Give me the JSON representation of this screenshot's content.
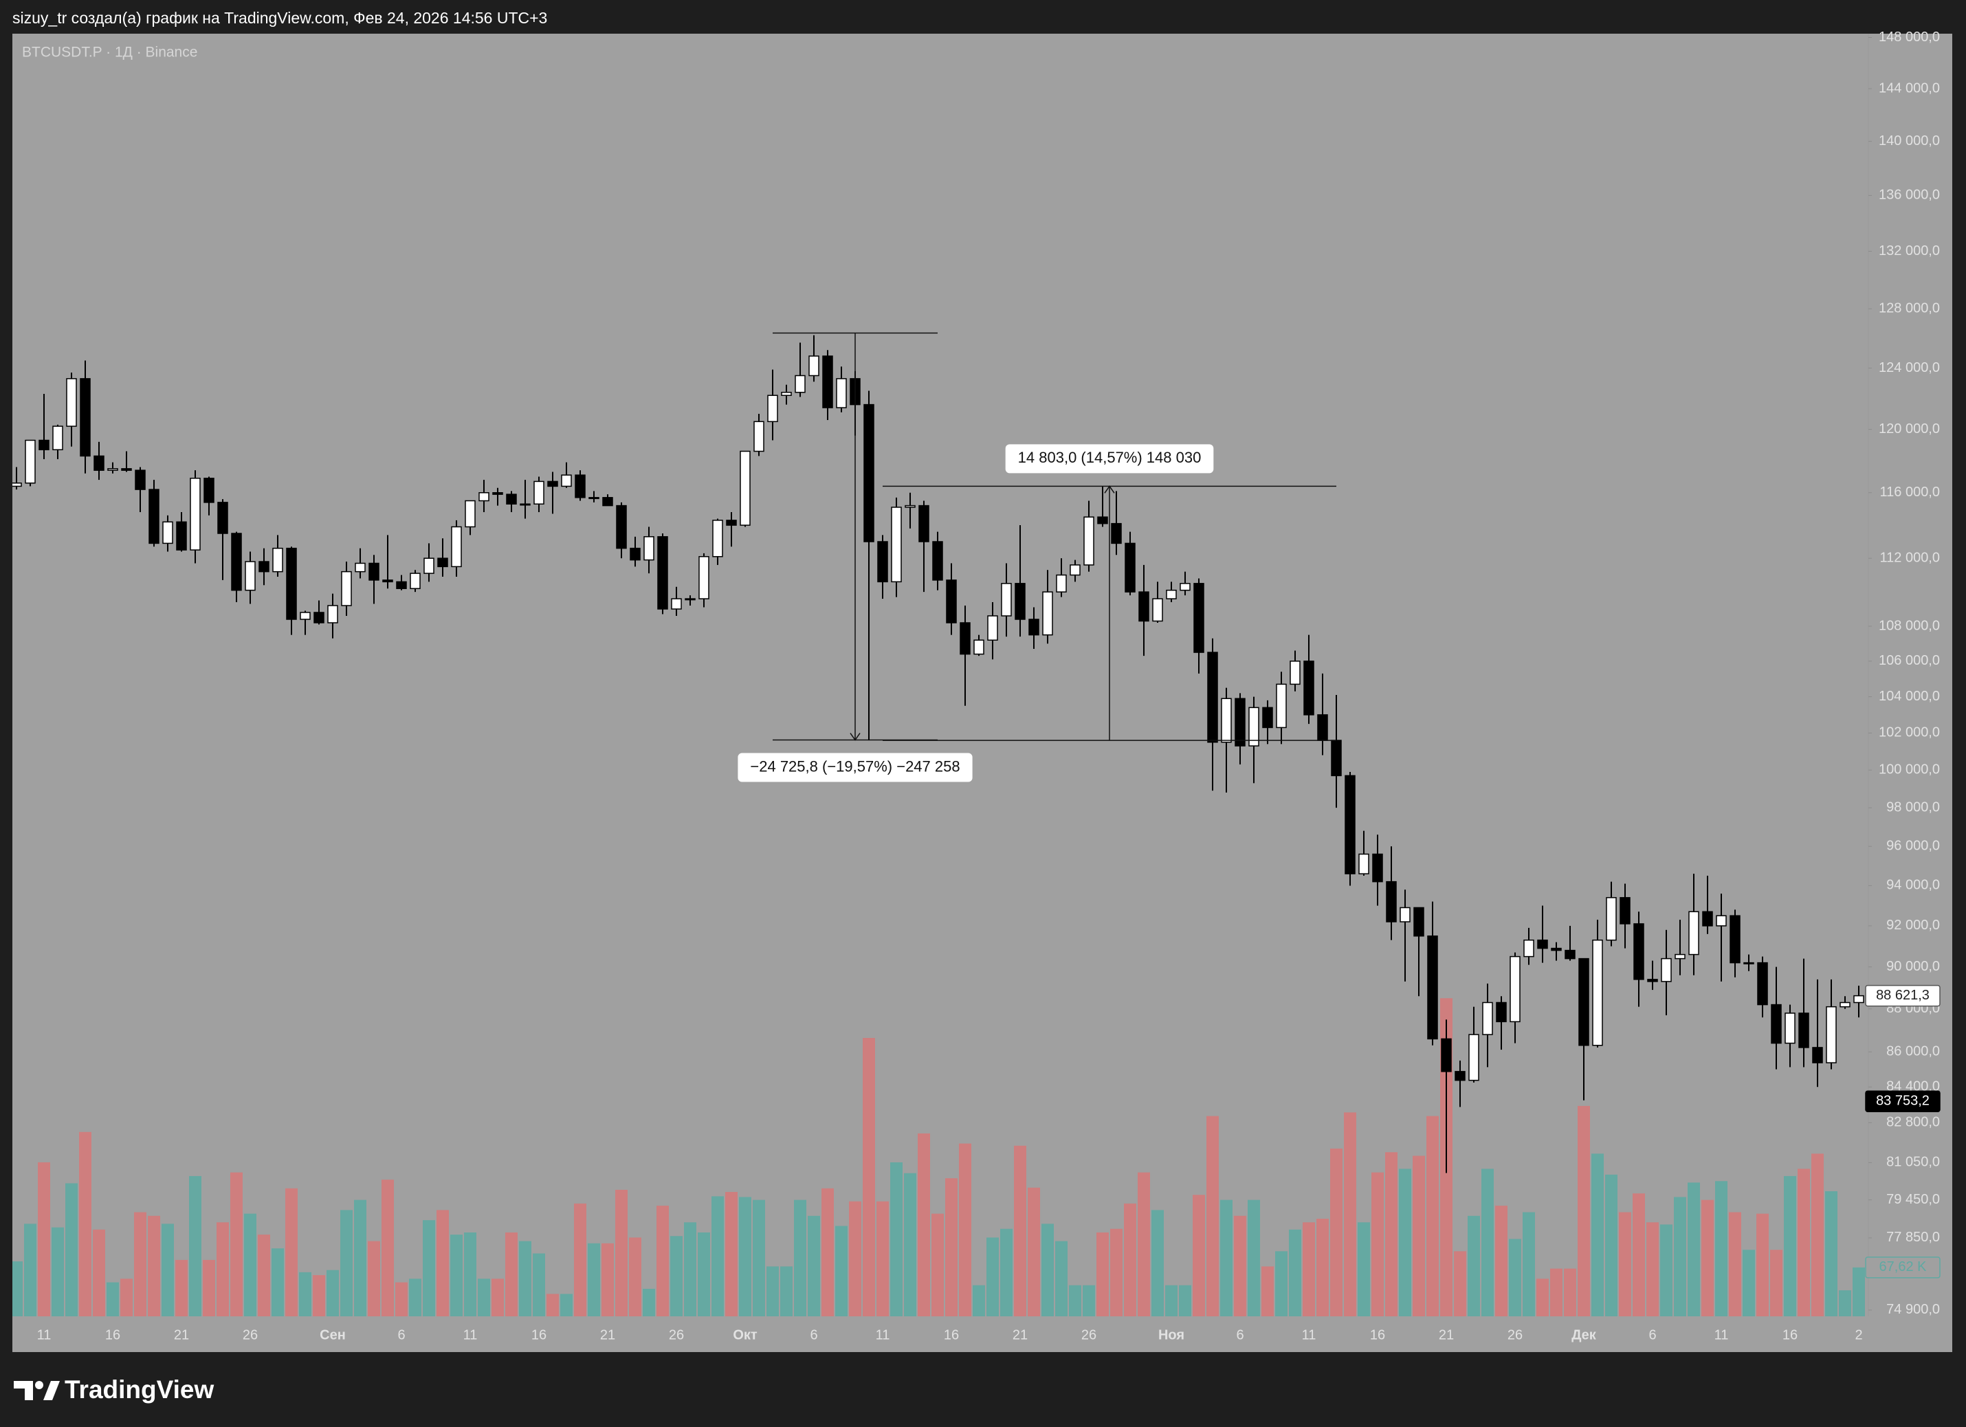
{
  "header": {
    "title": "sizuy_tr создал(а) график на TradingView.com, Фев 24, 2026 14:56 UTC+3"
  },
  "footer": {
    "brand": "TradingView"
  },
  "chart_data": {
    "type": "candlestick",
    "symbol": "BTCUSDT.P · 1Д · Binance",
    "categories": [
      null,
      null,
      "11",
      null,
      null,
      null,
      null,
      "16",
      null,
      null,
      null,
      null,
      "21",
      null,
      null,
      null,
      null,
      "26",
      null,
      null,
      null,
      null,
      null,
      "Сен",
      null,
      null,
      null,
      null,
      "6",
      null,
      null,
      null,
      null,
      "11",
      null,
      null,
      null,
      null,
      "16",
      null,
      null,
      null,
      null,
      "21",
      null,
      null,
      null,
      null,
      "26",
      null,
      null,
      null,
      null,
      "Окт",
      null,
      null,
      null,
      null,
      "6",
      null,
      null,
      null,
      null,
      "11",
      null,
      null,
      null,
      null,
      "16",
      null,
      null,
      null,
      null,
      "21",
      null,
      null,
      null,
      null,
      "26",
      null,
      null,
      null,
      null,
      null,
      "Ноя",
      null,
      null,
      null,
      null,
      "6",
      null,
      null,
      null,
      null,
      "11",
      null,
      null,
      null,
      null,
      "16",
      null,
      null,
      null,
      null,
      "21",
      null,
      null,
      null,
      null,
      "26",
      null,
      null,
      null,
      null,
      "Дек",
      null,
      null,
      null,
      null,
      "6",
      null,
      null,
      null,
      null,
      "11",
      null,
      null,
      null,
      null,
      "16",
      null,
      null,
      null,
      null,
      "2"
    ],
    "open": [
      116400,
      116600,
      119300,
      118700,
      120200,
      123300,
      118300,
      117400,
      117500,
      117400,
      116200,
      112900,
      114200,
      112500,
      116900,
      115400,
      113500,
      110100,
      111800,
      111200,
      112600,
      108400,
      108800,
      108200,
      109200,
      111200,
      111700,
      110700,
      110600,
      110200,
      111100,
      112000,
      111500,
      113900,
      115500,
      116000,
      115900,
      115300,
      115300,
      116700,
      116400,
      117100,
      115700,
      115700,
      115200,
      112600,
      111900,
      113300,
      109000,
      109600,
      109600,
      112100,
      114300,
      114000,
      118600,
      120500,
      122200,
      122400,
      123500,
      124800,
      121400,
      123300,
      121600,
      113000,
      110600,
      115100,
      115200,
      113000,
      110700,
      108200,
      106400,
      107200,
      108600,
      110500,
      108400,
      107500,
      110000,
      111000,
      111600,
      114500,
      114100,
      112900,
      110000,
      108300,
      109600,
      110100,
      110500,
      106500,
      101500,
      103900,
      101300,
      103400,
      102300,
      104700,
      106000,
      103000,
      101600,
      99700,
      94600,
      95600,
      94200,
      92200,
      92900,
      91500,
      86600,
      85100,
      84700,
      86800,
      88300,
      87400,
      90500,
      91300,
      90900,
      90800,
      90400,
      86300,
      91300,
      93400,
      92100,
      89400,
      89300,
      90400,
      90600,
      92700,
      92000,
      92500,
      90200,
      90200,
      88200,
      86400,
      87800,
      86200,
      85500,
      88100,
      88300
    ],
    "high": [
      117600,
      119300,
      122300,
      120300,
      123700,
      124500,
      119200,
      117900,
      118600,
      117600,
      116800,
      114600,
      114800,
      117400,
      117000,
      115600,
      113600,
      112400,
      112600,
      113400,
      112700,
      108900,
      109500,
      109900,
      111800,
      112600,
      112200,
      113400,
      111000,
      111300,
      112900,
      113200,
      114300,
      115500,
      116800,
      116300,
      116100,
      116800,
      117000,
      117300,
      117900,
      117400,
      116100,
      115900,
      115400,
      113300,
      113900,
      113500,
      110300,
      109800,
      112300,
      114400,
      114800,
      118600,
      121000,
      123900,
      122900,
      125700,
      126200,
      125200,
      124100,
      123800,
      122500,
      113400,
      115700,
      116000,
      115500,
      113600,
      111700,
      109200,
      107500,
      109400,
      111700,
      114000,
      109100,
      111300,
      112000,
      111900,
      115500,
      116400,
      116100,
      113600,
      111600,
      110600,
      110600,
      111200,
      110800,
      107300,
      104500,
      104200,
      104000,
      103800,
      105400,
      106600,
      107500,
      105300,
      104100,
      99900,
      96800,
      96600,
      96000,
      93800,
      92900,
      93200,
      87500,
      85600,
      88100,
      89200,
      88600,
      90700,
      91900,
      93000,
      91200,
      92000,
      90400,
      92300,
      94200,
      94100,
      92700,
      90300,
      91800,
      92300,
      94600,
      94500,
      93600,
      92800,
      90600,
      90500,
      90000,
      88200,
      90400,
      89400,
      89400,
      88600,
      89100
    ],
    "low": [
      116200,
      116400,
      118100,
      118100,
      118900,
      117200,
      116800,
      117200,
      117300,
      114800,
      112700,
      112400,
      112400,
      111700,
      114600,
      110700,
      109400,
      109300,
      110400,
      110900,
      107500,
      107500,
      108100,
      107300,
      108600,
      110800,
      109300,
      110200,
      110100,
      110000,
      110600,
      110900,
      110900,
      113400,
      114800,
      115200,
      114800,
      114400,
      114800,
      114700,
      116300,
      115500,
      115400,
      115200,
      112000,
      111500,
      111100,
      108700,
      108600,
      109200,
      109100,
      111600,
      112700,
      113900,
      118300,
      119300,
      121600,
      122100,
      123100,
      120600,
      121100,
      119600,
      101600,
      109600,
      109700,
      113800,
      110000,
      110100,
      107500,
      103500,
      106300,
      106100,
      107400,
      107400,
      106700,
      107000,
      109700,
      110600,
      111200,
      113900,
      112200,
      109800,
      106300,
      108200,
      109400,
      109800,
      105300,
      98900,
      98800,
      100300,
      99300,
      101400,
      101400,
      104300,
      102500,
      100800,
      98000,
      94000,
      94500,
      93000,
      91300,
      89300,
      88600,
      86300,
      80600,
      83500,
      84600,
      85300,
      86100,
      86400,
      90100,
      90200,
      90300,
      90300,
      83800,
      86200,
      91000,
      90900,
      88100,
      88900,
      87700,
      89600,
      89600,
      91600,
      89300,
      89500,
      89800,
      87600,
      85200,
      85300,
      85300,
      84400,
      85200,
      88000,
      87600
    ],
    "close": [
      116600,
      119300,
      118700,
      120200,
      123300,
      118300,
      117400,
      117500,
      117400,
      116200,
      112900,
      114200,
      112500,
      116900,
      115400,
      113500,
      110100,
      111800,
      111200,
      112600,
      108400,
      108800,
      108200,
      109200,
      111200,
      111700,
      110700,
      110600,
      110200,
      111100,
      112000,
      111500,
      113900,
      115500,
      116000,
      115900,
      115300,
      115300,
      116700,
      116400,
      117100,
      115700,
      115700,
      115200,
      112600,
      111900,
      113300,
      109000,
      109600,
      109600,
      112100,
      114300,
      114000,
      118600,
      120500,
      122200,
      122400,
      123500,
      124800,
      121400,
      123300,
      121600,
      113000,
      110600,
      115100,
      115200,
      113000,
      110700,
      108200,
      106400,
      107200,
      108600,
      110500,
      108400,
      107500,
      110000,
      111000,
      111600,
      114500,
      114100,
      112900,
      110000,
      108300,
      109600,
      110100,
      110500,
      106500,
      101500,
      103900,
      101300,
      103400,
      102300,
      104700,
      106000,
      103000,
      101600,
      99700,
      94600,
      95600,
      94200,
      92200,
      92900,
      91500,
      86600,
      85100,
      84700,
      86800,
      88300,
      87400,
      90500,
      91300,
      90900,
      90800,
      90400,
      86300,
      91300,
      93400,
      92100,
      89400,
      89300,
      90400,
      90600,
      92700,
      92000,
      92500,
      90200,
      90200,
      88200,
      86400,
      87800,
      86200,
      85500,
      88100,
      88300,
      88621.3
    ],
    "volume": [
      76,
      128,
      213,
      123,
      184,
      255,
      120,
      47,
      52,
      144,
      139,
      128,
      78,
      194,
      78,
      130,
      199,
      142,
      113,
      94,
      177,
      61,
      57,
      64,
      147,
      161,
      104,
      189,
      47,
      52,
      133,
      147,
      113,
      116,
      52,
      52,
      116,
      104,
      87,
      31,
      31,
      156,
      101,
      101,
      175,
      109,
      38,
      153,
      111,
      130,
      116,
      166,
      172,
      165,
      161,
      69,
      69,
      161,
      139,
      177,
      125,
      159,
      385,
      159,
      213,
      198,
      253,
      142,
      191,
      239,
      43,
      109,
      121,
      236,
      178,
      128,
      104,
      43,
      43,
      116,
      121,
      156,
      199,
      147,
      43,
      43,
      168,
      277,
      161,
      139,
      161,
      69,
      90,
      120,
      130,
      135,
      232,
      282,
      130,
      199,
      227,
      204,
      222,
      277,
      440,
      90,
      139,
      204,
      153,
      107,
      144,
      52,
      66,
      66,
      291,
      225,
      196,
      144,
      170,
      130,
      127,
      165,
      185,
      161,
      187,
      144,
      92,
      142,
      92,
      194,
      204,
      225,
      173,
      36,
      67.62
    ],
    "up_color": "#ffffff",
    "down_color": "#000000",
    "wick_color": "#000000",
    "volume_up_color": "#5fa9a2",
    "volume_down_color": "#d27b7b",
    "log_scale": true,
    "grid": false,
    "ylim": [
      74650,
      148300
    ],
    "yticks": [
      {
        "value": 148000,
        "label": "148 000,0"
      },
      {
        "value": 144000,
        "label": "144 000,0"
      },
      {
        "value": 140000,
        "label": "140 000,0"
      },
      {
        "value": 136000,
        "label": "136 000,0"
      },
      {
        "value": 132000,
        "label": "132 000,0"
      },
      {
        "value": 128000,
        "label": "128 000,0"
      },
      {
        "value": 124000,
        "label": "124 000,0"
      },
      {
        "value": 120000,
        "label": "120 000,0"
      },
      {
        "value": 116000,
        "label": "116 000,0"
      },
      {
        "value": 112000,
        "label": "112 000,0"
      },
      {
        "value": 108000,
        "label": "108 000,0"
      },
      {
        "value": 106000,
        "label": "106 000,0"
      },
      {
        "value": 104000,
        "label": "104 000,0"
      },
      {
        "value": 102000,
        "label": "102 000,0"
      },
      {
        "value": 100000,
        "label": "100 000,0"
      },
      {
        "value": 98000,
        "label": "98 000,0"
      },
      {
        "value": 96000,
        "label": "96 000,0"
      },
      {
        "value": 94000,
        "label": "94 000,0"
      },
      {
        "value": 92000,
        "label": "92 000,0"
      },
      {
        "value": 90000,
        "label": "90 000,0"
      },
      {
        "value": 88000,
        "label": "88 000,0"
      },
      {
        "value": 86000,
        "label": "86 000,0"
      },
      {
        "value": 84400,
        "label": "84 400,0"
      },
      {
        "value": 82800,
        "label": "82 800,0"
      },
      {
        "value": 81050,
        "label": "81 050,0"
      },
      {
        "value": 79450,
        "label": "79 450,0"
      },
      {
        "value": 77850,
        "label": "77 850,0"
      },
      {
        "value": 74900,
        "label": "74 900,0"
      }
    ],
    "volume_ylim": [
      0,
      1774
    ],
    "price_tags": [
      {
        "value": 88621.3,
        "label": "88 621,3",
        "style": "outline"
      },
      {
        "value": 83753.2,
        "label": "83 753,2",
        "style": "dark"
      }
    ],
    "volume_tag": {
      "value": 67.62,
      "label": "67,62 K"
    },
    "measures": [
      {
        "label": "−24 725,8 (−19,57%) −247 258",
        "from": 126346,
        "to": 101620,
        "x_start": 55,
        "x_end": 67
      },
      {
        "label": "14 803,0 (14,57%) 148 030",
        "from": 101600,
        "to": 116403,
        "x_start": 63,
        "x_end": 96
      }
    ]
  }
}
